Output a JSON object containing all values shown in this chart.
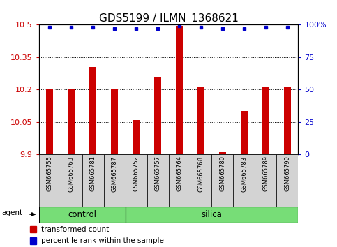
{
  "title": "GDS5199 / ILMN_1368621",
  "samples": [
    "GSM665755",
    "GSM665763",
    "GSM665781",
    "GSM665787",
    "GSM665752",
    "GSM665757",
    "GSM665764",
    "GSM665768",
    "GSM665780",
    "GSM665783",
    "GSM665789",
    "GSM665790"
  ],
  "bar_values": [
    10.2,
    10.205,
    10.305,
    10.2,
    10.06,
    10.255,
    10.495,
    10.215,
    9.91,
    10.1,
    10.215,
    10.21
  ],
  "percentile_values": [
    98,
    98,
    98,
    97,
    97,
    97,
    99,
    98,
    97,
    97,
    98,
    98
  ],
  "ymin": 9.9,
  "ymax": 10.5,
  "yticks": [
    9.9,
    10.05,
    10.2,
    10.35,
    10.5
  ],
  "ytick_labels": [
    "9.9",
    "10.05",
    "10.2",
    "10.35",
    "10.5"
  ],
  "right_yticks": [
    0,
    25,
    50,
    75,
    100
  ],
  "right_ytick_labels": [
    "0",
    "25",
    "50",
    "75",
    "100%"
  ],
  "bar_color": "#cc0000",
  "dot_color": "#0000cc",
  "n_control": 4,
  "n_silica": 8,
  "control_color": "#77dd77",
  "silica_color": "#77dd77",
  "legend_bar_label": "transformed count",
  "legend_dot_label": "percentile rank within the sample",
  "agent_label": "agent",
  "control_label": "control",
  "silica_label": "silica",
  "background_color": "#ffffff",
  "cell_bg_color": "#d3d3d3",
  "plot_bg_color": "#ffffff",
  "title_fontsize": 11,
  "tick_fontsize": 8,
  "sample_fontsize": 6,
  "bar_width": 0.35
}
